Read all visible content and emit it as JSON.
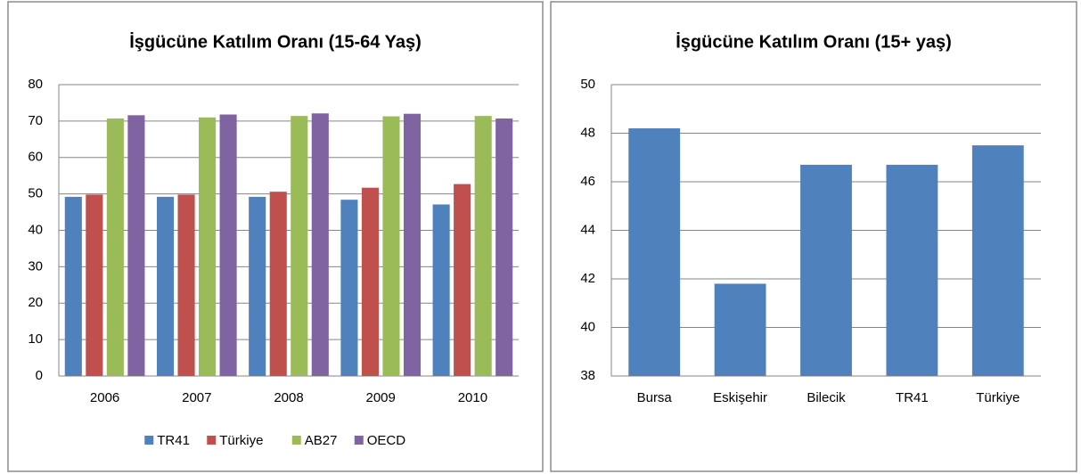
{
  "chart_data": [
    {
      "type": "bar",
      "title": "İşgücüne Katılım Oranı (15-64 Yaş)",
      "categories": [
        "2006",
        "2007",
        "2008",
        "2009",
        "2010"
      ],
      "series": [
        {
          "name": "TR41",
          "color": "#4f81bd",
          "values": [
            49.2,
            49.2,
            49.2,
            48.4,
            47.1
          ]
        },
        {
          "name": "Türkiye",
          "color": "#c0504d",
          "values": [
            49.8,
            49.8,
            50.6,
            51.7,
            52.7
          ]
        },
        {
          "name": "AB27",
          "color": "#9bbb59",
          "values": [
            70.7,
            71.0,
            71.4,
            71.3,
            71.4
          ]
        },
        {
          "name": "OECD",
          "color": "#8064a2",
          "values": [
            71.6,
            71.8,
            72.1,
            72.0,
            70.7
          ]
        }
      ],
      "ylim": [
        0,
        80
      ],
      "yticks": [
        0,
        10,
        20,
        30,
        40,
        50,
        60,
        70,
        80
      ],
      "grid": true,
      "legend": "bottom"
    },
    {
      "type": "bar",
      "title": "İşgücüne Katılım Oranı (15+ yaş)",
      "categories": [
        "Bursa",
        "Eskişehir",
        "Bilecik",
        "TR41",
        "Türkiye"
      ],
      "values": [
        48.2,
        41.8,
        46.7,
        46.7,
        47.5
      ],
      "color": "#4f81bd",
      "ylim": [
        38,
        50
      ],
      "yticks": [
        38,
        40,
        42,
        44,
        46,
        48,
        50
      ],
      "grid": true
    }
  ]
}
